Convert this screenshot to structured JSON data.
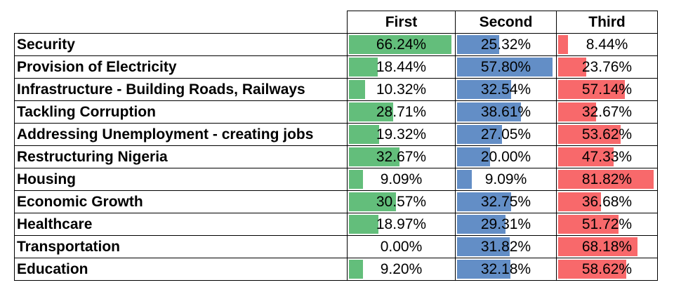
{
  "chart_data": {
    "type": "table",
    "columns": [
      "First",
      "Second",
      "Third"
    ],
    "rows": [
      {
        "label": "Security",
        "values": [
          66.24,
          25.32,
          8.44
        ]
      },
      {
        "label": "Provision of Electricity",
        "values": [
          18.44,
          57.8,
          23.76
        ]
      },
      {
        "label": "Infrastructure - Building Roads, Railways",
        "values": [
          10.32,
          32.54,
          57.14
        ]
      },
      {
        "label": "Tackling Corruption",
        "values": [
          28.71,
          38.61,
          32.67
        ]
      },
      {
        "label": "Addressing Unemployment - creating jobs",
        "values": [
          19.32,
          27.05,
          53.62
        ]
      },
      {
        "label": "Restructuring Nigeria",
        "values": [
          32.67,
          20.0,
          47.33
        ]
      },
      {
        "label": "Housing",
        "values": [
          9.09,
          9.09,
          81.82
        ]
      },
      {
        "label": "Economic Growth",
        "values": [
          30.57,
          32.75,
          36.68
        ]
      },
      {
        "label": "Healthcare",
        "values": [
          18.97,
          29.31,
          51.72
        ]
      },
      {
        "label": "Transportation",
        "values": [
          0.0,
          31.82,
          68.18
        ]
      },
      {
        "label": "Education",
        "values": [
          9.2,
          32.18,
          58.62
        ]
      }
    ],
    "bar_colors": [
      "#63be7b",
      "#638ec6",
      "#f8696b"
    ],
    "value_suffix": "%"
  }
}
